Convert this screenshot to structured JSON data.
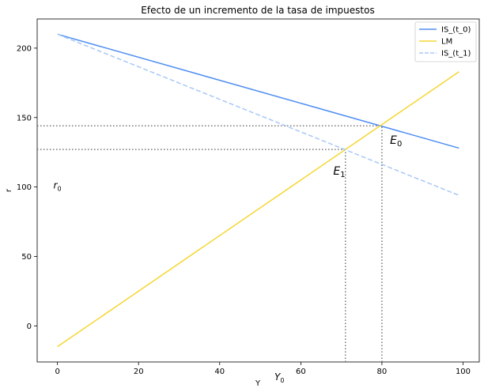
{
  "chart_data": {
    "type": "line",
    "title": "Efecto de un incremento de la tasa de impuestos",
    "xlabel": "Y",
    "ylabel": "r",
    "xlim": [
      -5,
      104
    ],
    "ylim": [
      -26,
      221
    ],
    "xticks": [
      0,
      20,
      40,
      60,
      80,
      100
    ],
    "yticks": [
      0,
      50,
      100,
      150,
      200
    ],
    "grid": false,
    "legend_position": "top-right",
    "series": [
      {
        "name": "IS_(t_0)",
        "color": "#4f8ef2",
        "dash": "solid",
        "x": [
          0,
          99
        ],
        "y": [
          210,
          128
        ]
      },
      {
        "name": "LM",
        "color": "#f5d632",
        "dash": "solid",
        "x": [
          0,
          99
        ],
        "y": [
          -15,
          183
        ]
      },
      {
        "name": "IS_(t_1)",
        "color": "#a8c8f5",
        "dash": "dashed",
        "x": [
          0,
          99
        ],
        "y": [
          210,
          94
        ]
      }
    ],
    "guides": [
      {
        "type": "h",
        "y": 144,
        "x0": -5,
        "x1": 80
      },
      {
        "type": "h",
        "y": 127,
        "x0": -5,
        "x1": 71
      },
      {
        "type": "v",
        "x": 80,
        "y0": -26,
        "y1": 144
      },
      {
        "type": "v",
        "x": 71,
        "y0": -26,
        "y1": 127
      }
    ],
    "annotations": [
      {
        "base": "E",
        "sub": "0",
        "x": 82,
        "y": 131,
        "size": "large"
      },
      {
        "base": "E",
        "sub": "1",
        "x": 68,
        "y": 109,
        "size": "large"
      },
      {
        "base": "r",
        "sub": "0",
        "x": -1,
        "y": 99,
        "size": "small"
      },
      {
        "base": "Y",
        "sub": "0",
        "x": 53.5,
        "y": -39,
        "size": "small"
      }
    ]
  }
}
